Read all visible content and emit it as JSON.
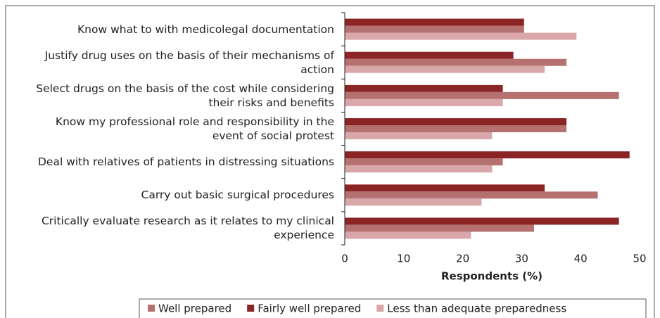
{
  "chart_data": {
    "type": "bar",
    "orientation": "horizontal",
    "categories": [
      "Know what to with medicolegal documentation",
      "Justify drug uses on the basis of their mechanisms of action",
      "Select drugs on the basis of the cost while considering their risks and benefits",
      "Know my professional role and responsibility in the event of social protest",
      "Deal with relatives of patients in distressing situations",
      "Carry out basic surgical procedures",
      "Critically evaluate research as it relates to my clinical experience"
    ],
    "series": [
      {
        "name": "Well prepared",
        "color": "#b5716f",
        "values": [
          30.4,
          37.6,
          46.5,
          37.6,
          26.8,
          42.9,
          32.1
        ]
      },
      {
        "name": "Fairly well prepared",
        "color": "#8b2424",
        "values": [
          30.4,
          28.6,
          26.8,
          37.6,
          48.3,
          33.9,
          46.5
        ]
      },
      {
        "name": "Less than adequate preparedness",
        "color": "#d9a7a9",
        "values": [
          39.3,
          33.9,
          26.8,
          25.0,
          25.0,
          23.2,
          21.4
        ]
      }
    ],
    "xlabel": "Respondents (%)",
    "xlim": [
      0,
      50
    ],
    "xticks": [
      0,
      10,
      20,
      30,
      40,
      50
    ],
    "legend": "bottom"
  }
}
